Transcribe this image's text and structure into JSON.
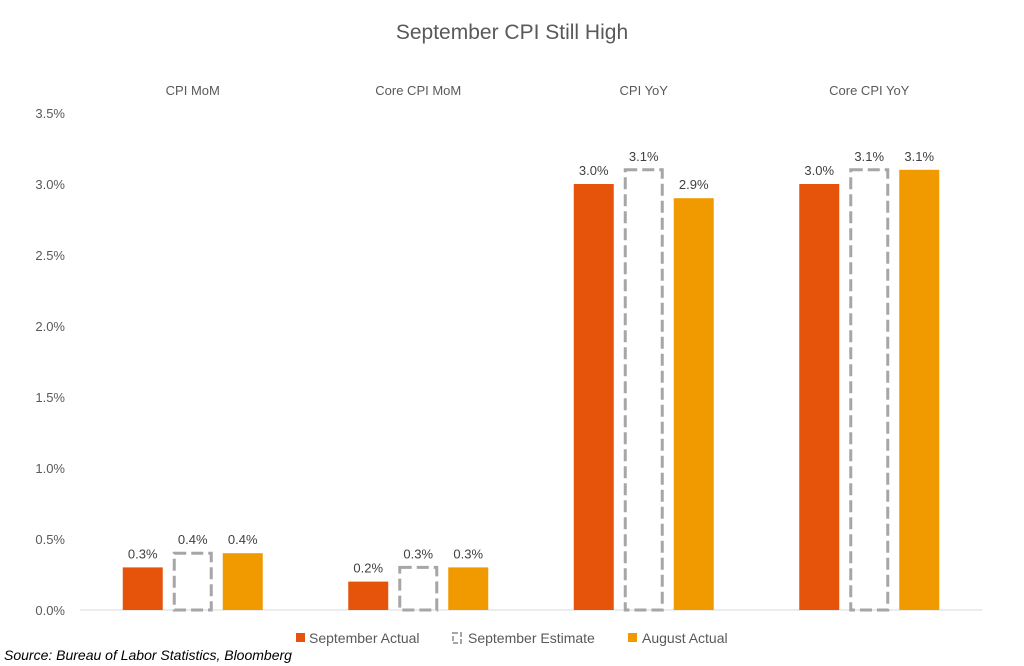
{
  "chart_data": {
    "type": "bar",
    "title": "September CPI Still High",
    "categories": [
      "CPI MoM",
      "Core CPI MoM",
      "CPI YoY",
      "Core CPI YoY"
    ],
    "series": [
      {
        "name": "September Actual",
        "values": [
          0.3,
          0.2,
          3.0,
          3.0
        ],
        "labels": [
          "0.3%",
          "0.2%",
          "3.0%",
          "3.0%"
        ],
        "color": "#E5540A",
        "style": "solid"
      },
      {
        "name": "September Estimate",
        "values": [
          0.4,
          0.3,
          3.1,
          3.1
        ],
        "labels": [
          "0.4%",
          "0.3%",
          "3.1%",
          "3.1%"
        ],
        "color": "#A6A6A6",
        "style": "dashed-outline"
      },
      {
        "name": "August Actual",
        "values": [
          0.4,
          0.3,
          2.9,
          3.1
        ],
        "labels": [
          "0.4%",
          "0.3%",
          "2.9%",
          "3.1%"
        ],
        "color": "#F09A00",
        "style": "solid"
      }
    ],
    "yticks": [
      "0.0%",
      "0.5%",
      "1.0%",
      "1.5%",
      "2.0%",
      "2.5%",
      "3.0%",
      "3.5%"
    ],
    "ylim": [
      0,
      3.5
    ],
    "xlabel": "",
    "ylabel": "",
    "legend_position": "bottom",
    "category_labels_position": "top",
    "grid": false
  },
  "source": "Source: Bureau of Labor Statistics, Bloomberg"
}
